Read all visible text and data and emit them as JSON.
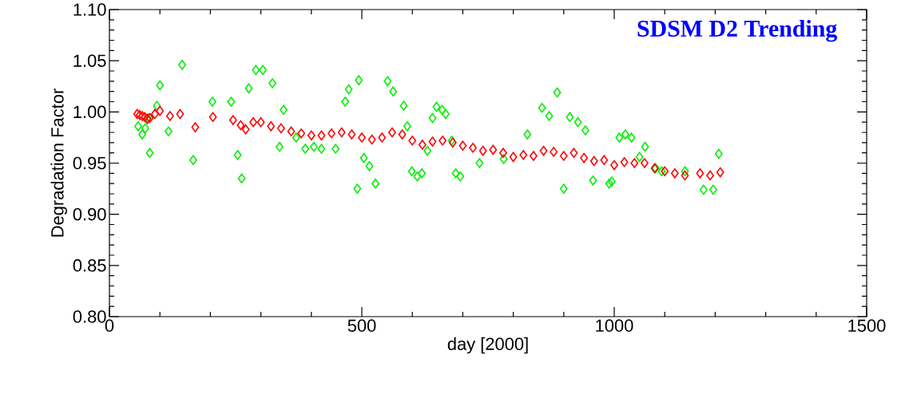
{
  "chart_data": {
    "type": "scatter",
    "title": "SDSM D2 Trending",
    "xlabel": "day [2000]",
    "ylabel": "Degradation Factor",
    "xlim": [
      0,
      1500
    ],
    "ylim": [
      0.8,
      1.1
    ],
    "xticks": [
      0,
      500,
      1000,
      1500
    ],
    "yticks": [
      {
        "value": 0.8,
        "label": "0.80"
      },
      0.85,
      {
        "value": 0.9,
        "label": "0.90"
      },
      0.95,
      {
        "value": 1.0,
        "label": "1.00"
      },
      1.05,
      {
        "value": 1.1,
        "label": "1.10"
      }
    ],
    "marker": "diamond",
    "grid": false,
    "series": [
      {
        "color": "#00ee00",
        "x": [
          57,
          65,
          71,
          76,
          80,
          94,
          100,
          117,
          144,
          166,
          204,
          241,
          254,
          262,
          276,
          290,
          304,
          323,
          337,
          345,
          370,
          388,
          405,
          420,
          448,
          467,
          474,
          491,
          494,
          504,
          515,
          527,
          551,
          562,
          583,
          590,
          599,
          610,
          619,
          630,
          640,
          648,
          659,
          666,
          678,
          686,
          695,
          733,
          781,
          828,
          857,
          871,
          887,
          900,
          912,
          928,
          943,
          958,
          990,
          995,
          1010,
          1022,
          1034,
          1061,
          1050,
          1082,
          1094,
          1140,
          1177,
          1196,
          1207
        ],
        "values": [
          0.986,
          0.978,
          0.984,
          0.994,
          0.96,
          1.006,
          1.026,
          0.981,
          1.046,
          0.953,
          1.01,
          1.01,
          0.958,
          0.935,
          1.023,
          1.041,
          1.041,
          1.028,
          0.966,
          1.002,
          0.975,
          0.964,
          0.966,
          0.964,
          0.964,
          1.01,
          1.022,
          0.925,
          1.031,
          0.955,
          0.947,
          0.93,
          1.03,
          1.02,
          1.006,
          0.986,
          0.942,
          0.937,
          0.94,
          0.962,
          0.994,
          1.005,
          1.002,
          0.998,
          0.972,
          0.94,
          0.937,
          0.95,
          0.954,
          0.978,
          1.004,
          0.996,
          1.019,
          0.925,
          0.995,
          0.99,
          0.982,
          0.933,
          0.93,
          0.932,
          0.975,
          0.978,
          0.975,
          0.966,
          0.956,
          0.945,
          0.942,
          0.942,
          0.924,
          0.924,
          0.959
        ]
      },
      {
        "color": "#ff0000",
        "x": [
          55,
          60,
          65,
          70,
          75,
          80,
          90,
          100,
          120,
          140,
          170,
          205,
          245,
          260,
          270,
          285,
          300,
          320,
          340,
          360,
          380,
          400,
          420,
          440,
          460,
          480,
          500,
          520,
          540,
          560,
          580,
          600,
          620,
          640,
          660,
          680,
          700,
          720,
          740,
          760,
          780,
          800,
          820,
          840,
          860,
          880,
          900,
          920,
          940,
          960,
          980,
          1000,
          1020,
          1040,
          1060,
          1080,
          1100,
          1120,
          1140,
          1170,
          1190,
          1210
        ],
        "values": [
          0.998,
          0.997,
          0.996,
          0.995,
          0.993,
          0.994,
          0.998,
          1.001,
          0.996,
          0.998,
          0.985,
          0.995,
          0.992,
          0.987,
          0.983,
          0.99,
          0.99,
          0.986,
          0.984,
          0.981,
          0.979,
          0.977,
          0.977,
          0.979,
          0.98,
          0.978,
          0.975,
          0.973,
          0.975,
          0.98,
          0.978,
          0.972,
          0.968,
          0.971,
          0.972,
          0.97,
          0.967,
          0.965,
          0.962,
          0.963,
          0.96,
          0.956,
          0.958,
          0.957,
          0.962,
          0.961,
          0.957,
          0.96,
          0.955,
          0.952,
          0.953,
          0.948,
          0.951,
          0.95,
          0.95,
          0.945,
          0.942,
          0.94,
          0.938,
          0.94,
          0.938,
          0.941
        ]
      }
    ]
  }
}
